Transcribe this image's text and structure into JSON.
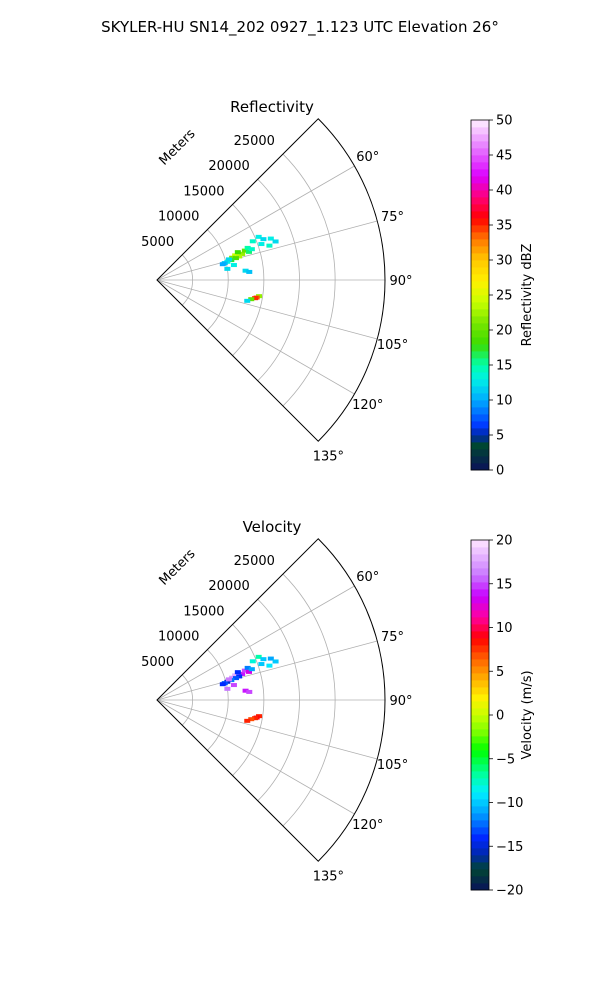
{
  "figure": {
    "suptitle": "SKYLER-HU  SN14_202  0927_1.123 UTC Elevation 26°"
  },
  "chart_data": [
    {
      "type": "polar-sector",
      "title": "Reflectivity",
      "range_label": "Meters",
      "range_ticks": [
        5000,
        10000,
        15000,
        20000,
        25000
      ],
      "range_tick_labels": [
        "5000",
        "10000",
        "15000",
        "20000",
        "25000"
      ],
      "rlim": [
        0,
        32000
      ],
      "azimuth_range_deg": [
        45,
        135
      ],
      "azimuth_ticks": [
        60,
        75,
        90,
        105,
        120,
        135
      ],
      "azimuth_tick_labels": [
        "60°",
        "75°",
        "90°",
        "105°",
        "120°",
        "135°"
      ],
      "grid": true,
      "colorbar": {
        "label": "Reflectivity dBZ",
        "min": 0,
        "max": 50,
        "ticks": [
          0,
          5,
          10,
          15,
          20,
          25,
          30,
          35,
          40,
          45,
          50
        ],
        "tick_labels": [
          "0",
          "5",
          "10",
          "15",
          "20",
          "25",
          "30",
          "35",
          "40",
          "45",
          "50"
        ]
      },
      "echoes": [
        {
          "azimuth": 72,
          "range": 12000,
          "value": 25
        },
        {
          "azimuth": 72.5,
          "range": 11500,
          "value": 24
        },
        {
          "azimuth": 73,
          "range": 12500,
          "value": 22
        },
        {
          "azimuth": 73.5,
          "range": 11000,
          "value": 21
        },
        {
          "azimuth": 74,
          "range": 12000,
          "value": 23
        },
        {
          "azimuth": 71.5,
          "range": 13000,
          "value": 20
        },
        {
          "azimuth": 74.5,
          "range": 11500,
          "value": 19
        },
        {
          "azimuth": 75,
          "range": 10800,
          "value": 17
        },
        {
          "azimuth": 75.5,
          "range": 10200,
          "value": 13
        },
        {
          "azimuth": 76,
          "range": 9800,
          "value": 11
        },
        {
          "azimuth": 71,
          "range": 12000,
          "value": 18
        },
        {
          "azimuth": 70.5,
          "range": 13500,
          "value": 15
        },
        {
          "azimuth": 73,
          "range": 13500,
          "value": 16
        },
        {
          "azimuth": 72,
          "range": 14000,
          "value": 14
        },
        {
          "azimuth": 76.5,
          "range": 9500,
          "value": 10
        },
        {
          "azimuth": 74,
          "range": 10500,
          "value": 12
        },
        {
          "azimuth": 68,
          "range": 14500,
          "value": 14
        },
        {
          "azimuth": 67,
          "range": 15500,
          "value": 13
        },
        {
          "azimuth": 69,
          "range": 16000,
          "value": 12
        },
        {
          "azimuth": 70,
          "range": 17000,
          "value": 13
        },
        {
          "azimuth": 72,
          "range": 17500,
          "value": 12
        },
        {
          "azimuth": 73,
          "range": 16500,
          "value": 14
        },
        {
          "azimuth": 71,
          "range": 15500,
          "value": 13
        },
        {
          "azimuth": 79,
          "range": 11000,
          "value": 13
        },
        {
          "azimuth": 81,
          "range": 10000,
          "value": 12
        },
        {
          "azimuth": 84,
          "range": 12500,
          "value": 12
        },
        {
          "azimuth": 85,
          "range": 13000,
          "value": 11
        },
        {
          "azimuth": 99,
          "range": 14500,
          "value": 22
        },
        {
          "azimuth": 100,
          "range": 14200,
          "value": 34
        },
        {
          "azimuth": 100.5,
          "range": 14000,
          "value": 35
        },
        {
          "azimuth": 101.5,
          "range": 13500,
          "value": 20
        },
        {
          "azimuth": 103,
          "range": 13000,
          "value": 12
        }
      ]
    },
    {
      "type": "polar-sector",
      "title": "Velocity",
      "range_label": "Meters",
      "range_ticks": [
        5000,
        10000,
        15000,
        20000,
        25000
      ],
      "range_tick_labels": [
        "5000",
        "10000",
        "15000",
        "20000",
        "25000"
      ],
      "rlim": [
        0,
        32000
      ],
      "azimuth_range_deg": [
        45,
        135
      ],
      "azimuth_ticks": [
        60,
        75,
        90,
        105,
        120,
        135
      ],
      "azimuth_tick_labels": [
        "60°",
        "75°",
        "90°",
        "105°",
        "120°",
        "135°"
      ],
      "grid": true,
      "colorbar": {
        "label": "Velocity (m/s)",
        "min": -20,
        "max": 20,
        "ticks": [
          -20,
          -15,
          -10,
          -5,
          0,
          5,
          10,
          15,
          20
        ],
        "tick_labels": [
          "−20",
          "−15",
          "−10",
          "−5",
          "0",
          "5",
          "10",
          "15",
          "20"
        ]
      },
      "echoes": [
        {
          "azimuth": 72,
          "range": 12000,
          "value": 16
        },
        {
          "azimuth": 72.5,
          "range": 11500,
          "value": 18
        },
        {
          "azimuth": 73,
          "range": 12500,
          "value": 14
        },
        {
          "azimuth": 73.5,
          "range": 11000,
          "value": 17
        },
        {
          "azimuth": 74,
          "range": 12000,
          "value": -14
        },
        {
          "azimuth": 71.5,
          "range": 13000,
          "value": 15
        },
        {
          "azimuth": 74.5,
          "range": 11500,
          "value": -13
        },
        {
          "azimuth": 75,
          "range": 10800,
          "value": -12
        },
        {
          "azimuth": 75.5,
          "range": 10200,
          "value": -15
        },
        {
          "azimuth": 76,
          "range": 9800,
          "value": -13
        },
        {
          "azimuth": 71,
          "range": 12000,
          "value": -14
        },
        {
          "azimuth": 70.5,
          "range": 13500,
          "value": -12
        },
        {
          "azimuth": 73,
          "range": 13500,
          "value": 13
        },
        {
          "azimuth": 72,
          "range": 14000,
          "value": -11
        },
        {
          "azimuth": 76.5,
          "range": 9500,
          "value": -14
        },
        {
          "azimuth": 74,
          "range": 10500,
          "value": 16
        },
        {
          "azimuth": 68,
          "range": 14500,
          "value": -8
        },
        {
          "azimuth": 67,
          "range": 15500,
          "value": -7
        },
        {
          "azimuth": 69,
          "range": 16000,
          "value": -10
        },
        {
          "azimuth": 70,
          "range": 17000,
          "value": -11
        },
        {
          "azimuth": 72,
          "range": 17500,
          "value": -10
        },
        {
          "azimuth": 73,
          "range": 16500,
          "value": -9
        },
        {
          "azimuth": 71,
          "range": 15500,
          "value": -10
        },
        {
          "azimuth": 79,
          "range": 11000,
          "value": 15
        },
        {
          "azimuth": 81,
          "range": 10000,
          "value": 16
        },
        {
          "azimuth": 84,
          "range": 12500,
          "value": 14
        },
        {
          "azimuth": 85,
          "range": 13000,
          "value": 15
        },
        {
          "azimuth": 99,
          "range": 14500,
          "value": 8
        },
        {
          "azimuth": 100,
          "range": 14200,
          "value": 9
        },
        {
          "azimuth": 100.5,
          "range": 14000,
          "value": 8
        },
        {
          "azimuth": 101.5,
          "range": 13500,
          "value": 7
        },
        {
          "azimuth": 103,
          "range": 13000,
          "value": 8
        }
      ]
    }
  ]
}
